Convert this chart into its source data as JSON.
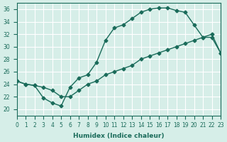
{
  "xlabel": "Humidex (Indice chaleur)",
  "ylabel": "",
  "xlim": [
    0,
    23
  ],
  "ylim": [
    19,
    37
  ],
  "xticks": [
    0,
    1,
    2,
    3,
    4,
    5,
    6,
    7,
    8,
    9,
    10,
    11,
    12,
    13,
    14,
    15,
    16,
    17,
    18,
    19,
    20,
    21,
    22,
    23
  ],
  "yticks": [
    20,
    22,
    24,
    26,
    28,
    30,
    32,
    34,
    36
  ],
  "background_color": "#d6eee8",
  "line_color": "#1a6b5a",
  "grid_color": "#ffffff",
  "line1_x": [
    0,
    1,
    2,
    3,
    4,
    5,
    6,
    7,
    8,
    9,
    10,
    11,
    12,
    13,
    14,
    15,
    16,
    17,
    18,
    19,
    20,
    21,
    22,
    23
  ],
  "line1_y": [
    24.5,
    24,
    23.8,
    21.8,
    21,
    20.5,
    23.5,
    25,
    25.5,
    27.5,
    31,
    33,
    33.5,
    34.5,
    35.5,
    36,
    36.2,
    36.2,
    35.8,
    35.5,
    33.5,
    31.5,
    31.5,
    29
  ],
  "line2_x": [
    0,
    1,
    2,
    3,
    4,
    5,
    6,
    7,
    8,
    9,
    10,
    11,
    12,
    13,
    14,
    15,
    16,
    17,
    18,
    19,
    20,
    21,
    22,
    23
  ],
  "line2_y": [
    24.5,
    24,
    23.8,
    23.5,
    23,
    22,
    22,
    23,
    24,
    24.5,
    25.5,
    26,
    26.5,
    27,
    28,
    28.5,
    29,
    29.5,
    30,
    30.5,
    31,
    31.5,
    32,
    29
  ]
}
